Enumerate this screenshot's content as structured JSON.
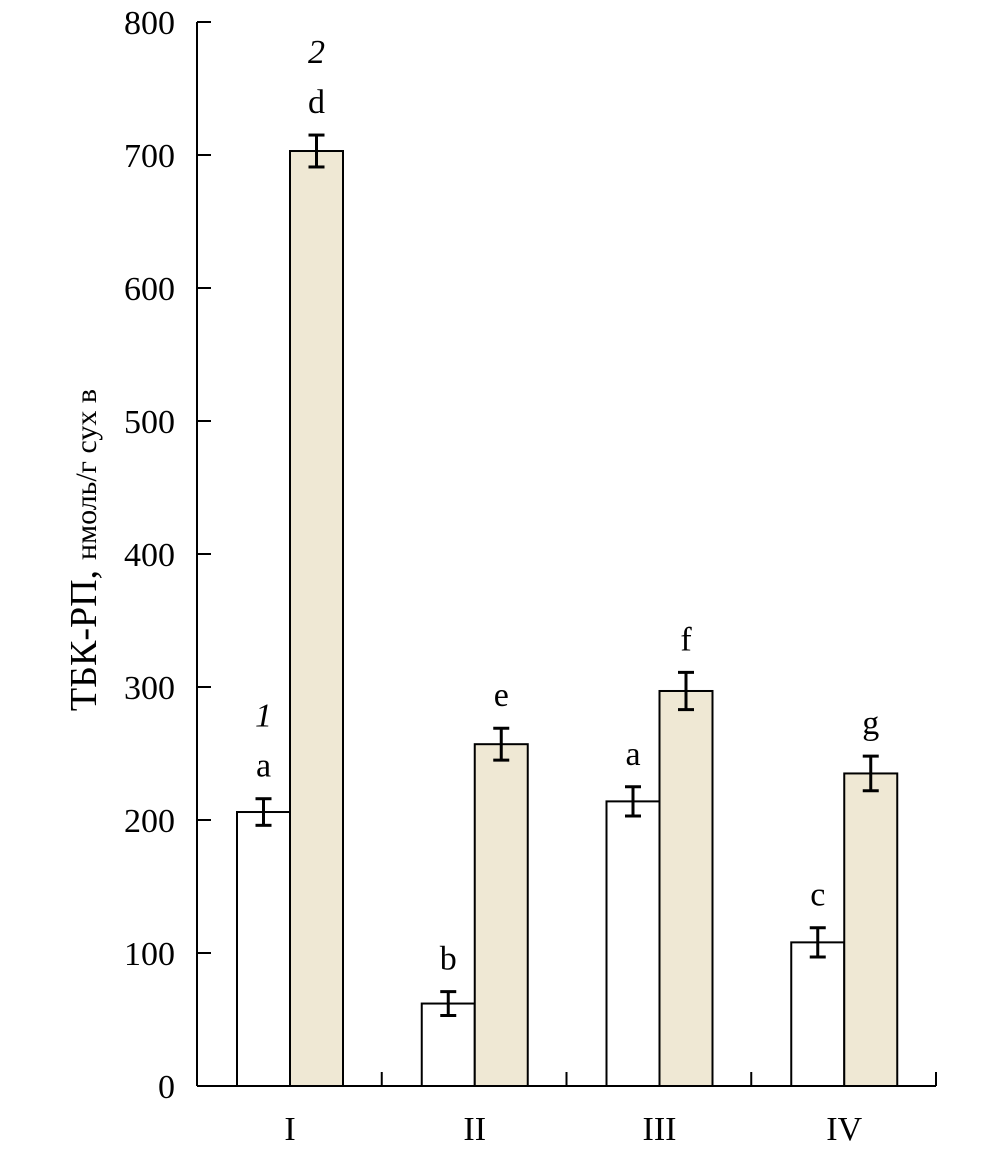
{
  "chart_data": {
    "type": "bar",
    "ylabel": "ТБК-РП,",
    "ylabel_unit": "нмоль/г сух в",
    "ylim": [
      0,
      800
    ],
    "yticks": [
      "0",
      "100",
      "200",
      "300",
      "400",
      "500",
      "600",
      "700",
      "800"
    ],
    "categories": [
      "I",
      "II",
      "III",
      "IV"
    ],
    "series": [
      {
        "name": "1",
        "color": "#ffffff",
        "values": [
          206,
          62,
          214,
          108
        ],
        "errors": [
          10,
          9,
          11,
          11
        ],
        "labels": [
          "a",
          "b",
          "a",
          "c"
        ]
      },
      {
        "name": "2",
        "color": "#efe8d4",
        "values": [
          703,
          257,
          297,
          235
        ],
        "errors": [
          12,
          12,
          14,
          13
        ],
        "labels": [
          "d",
          "e",
          "f",
          "g"
        ]
      }
    ]
  }
}
